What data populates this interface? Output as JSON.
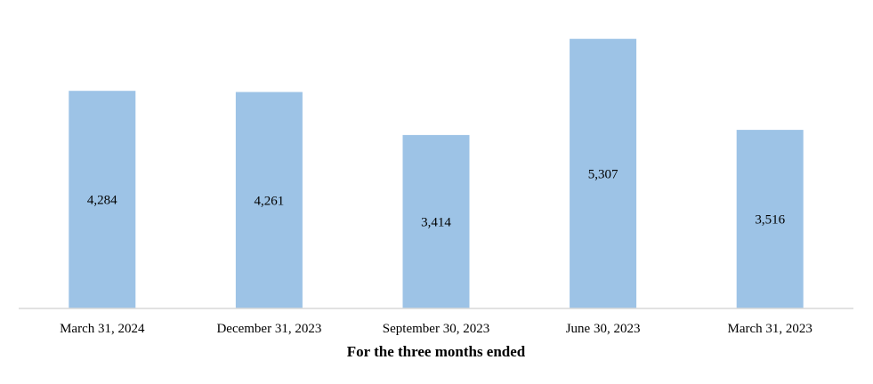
{
  "chart_data": {
    "type": "bar",
    "title": "",
    "xlabel": "For the three months ended",
    "ylabel": "",
    "categories": [
      "March 31, 2024",
      "December 31, 2023",
      "September 30, 2023",
      "June 30, 2023",
      "March 31, 2023"
    ],
    "values": [
      4284,
      4261,
      3414,
      5307,
      3516
    ],
    "data_labels": [
      "4,284",
      "4,261",
      "3,414",
      "5,307",
      "3,516"
    ],
    "ylim": [
      0,
      5600
    ],
    "grid": false,
    "legend": "none",
    "colors": {
      "bar": "#9dc3e6",
      "axis": "#d9d9d9"
    }
  }
}
